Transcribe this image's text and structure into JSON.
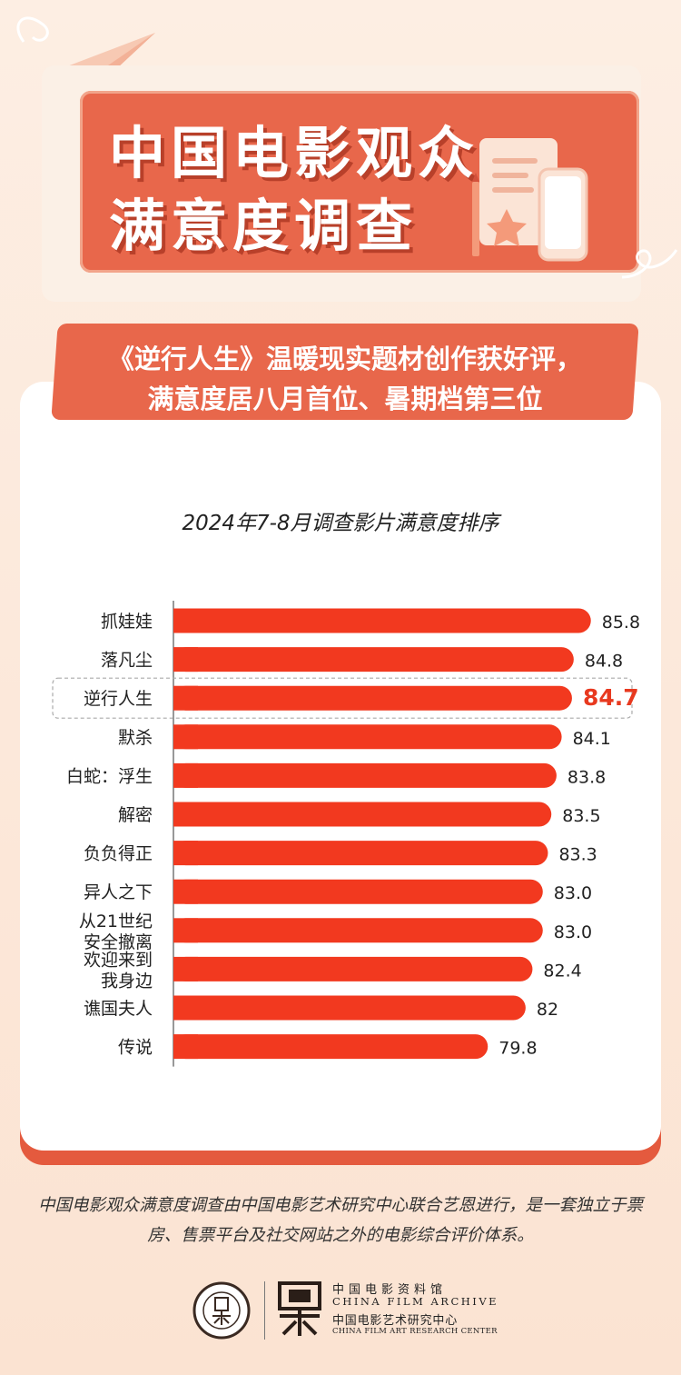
{
  "header": {
    "title_line1": "中国电影观众",
    "title_line2": "满意度调查"
  },
  "subtitle": {
    "line1": "《逆行人生》温暖现实题材创作获好评，",
    "line2": "满意度居八月首位、暑期档第三位"
  },
  "colors": {
    "accent": "#e8674b",
    "bar": "#f2391f",
    "highlight_value": "#e8391f"
  },
  "chart_data": {
    "type": "bar",
    "orientation": "horizontal",
    "title": "2024年7-8月调查影片满意度排序",
    "categories": [
      [
        "抓娃娃"
      ],
      [
        "落凡尘"
      ],
      [
        "逆行人生"
      ],
      [
        "默杀"
      ],
      [
        "白蛇：浮生"
      ],
      [
        "解密"
      ],
      [
        "负负得正"
      ],
      [
        "异人之下"
      ],
      [
        "从21世纪",
        "安全撤离"
      ],
      [
        "欢迎来到",
        "我身边"
      ],
      [
        "谯国夫人"
      ],
      [
        "传说"
      ]
    ],
    "values": [
      85.8,
      84.8,
      84.7,
      84.1,
      83.8,
      83.5,
      83.3,
      83.0,
      83.0,
      82.4,
      82,
      79.8
    ],
    "value_labels": [
      "85.8",
      "84.8",
      "84.7",
      "84.1",
      "83.8",
      "83.5",
      "83.3",
      "83.0",
      "83.0",
      "82.4",
      "82",
      "79.8"
    ],
    "highlight_index": 2,
    "xlabel": "",
    "ylabel": "",
    "grid": false,
    "legend": "none"
  },
  "footnote": "中国电影观众满意度调查由中国电影艺术研究中心联合艺恩进行，是一套独立于票房、售票平台及社交网站之外的电影综合评价体系。",
  "organizations": {
    "name_cn1": "中国电影资料馆",
    "name_en1": "CHINA FILM ARCHIVE",
    "name_cn2": "中国电影艺术研究中心",
    "name_en2": "CHINA FILM ART RESEARCH CENTER"
  }
}
